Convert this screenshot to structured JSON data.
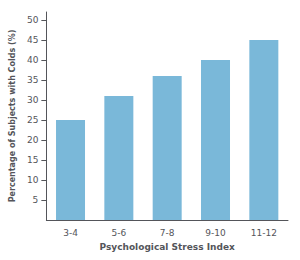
{
  "chart_data": {
    "type": "bar",
    "categories": [
      "3-4",
      "5-6",
      "7-8",
      "9-10",
      "11-12"
    ],
    "values": [
      25,
      31,
      36,
      40,
      45
    ],
    "color": "#7ab8d9",
    "xlabel": "Psychological Stress Index",
    "ylabel": "Percentage of Subjects with Colds (%)",
    "ylim": [
      0,
      52
    ],
    "yticks": [
      5,
      10,
      15,
      20,
      25,
      30,
      35,
      40,
      45,
      50
    ],
    "grid": false
  }
}
